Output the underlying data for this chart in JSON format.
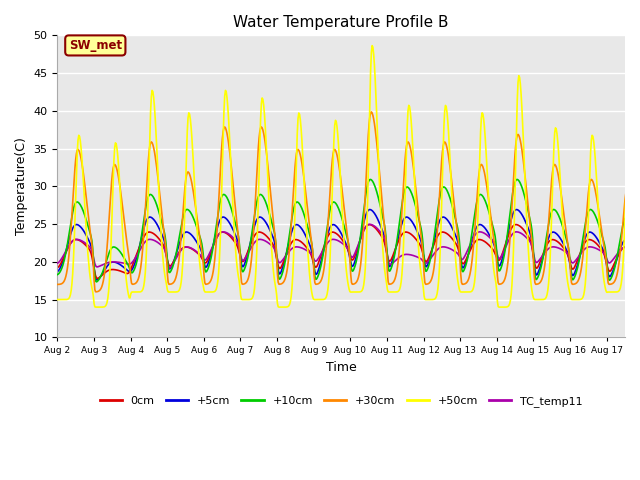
{
  "title": "Water Temperature Profile B",
  "xlabel": "Time",
  "ylabel": "Temperature(C)",
  "ylim": [
    10,
    50
  ],
  "background_color": "#e8e8e8",
  "grid_color": "white",
  "series": {
    "0cm": {
      "color": "#dd0000",
      "lw": 1.2
    },
    "+5cm": {
      "color": "#0000dd",
      "lw": 1.2
    },
    "+10cm": {
      "color": "#00cc00",
      "lw": 1.2
    },
    "+30cm": {
      "color": "#ff8800",
      "lw": 1.2
    },
    "+50cm": {
      "color": "#ffff00",
      "lw": 1.2
    },
    "TC_temp11": {
      "color": "#aa00aa",
      "lw": 1.2
    }
  },
  "legend_labels": [
    "0cm",
    "+5cm",
    "+10cm",
    "+30cm",
    "+50cm",
    "TC_temp11"
  ],
  "legend_colors": [
    "#dd0000",
    "#0000dd",
    "#00cc00",
    "#ff8800",
    "#ffff00",
    "#aa00aa"
  ],
  "sw_met_label": "SW_met",
  "sw_met_bg": "#ffff99",
  "sw_met_border": "#8b0000",
  "xtick_labels": [
    "Aug 2",
    "Aug 3",
    "Aug 4",
    "Aug 5",
    "Aug 6",
    "Aug 7",
    "Aug 8",
    "Aug 9",
    "Aug 10",
    "Aug 11",
    "Aug 12",
    "Aug 13",
    "Aug 14",
    "Aug 15",
    "Aug 16",
    "Aug 17"
  ],
  "n_days": 16,
  "pts_per_day": 48,
  "daily_peaks_50cm": [
    37,
    36,
    43,
    40,
    43,
    42,
    40,
    39,
    49,
    41,
    41,
    40,
    45,
    38,
    37,
    36
  ],
  "daily_peaks_30cm": [
    35,
    33,
    36,
    32,
    38,
    38,
    35,
    35,
    40,
    36,
    36,
    33,
    37,
    33,
    31,
    30
  ],
  "daily_peaks_10cm": [
    28,
    22,
    29,
    27,
    29,
    29,
    28,
    28,
    31,
    30,
    30,
    29,
    31,
    27,
    27,
    26
  ],
  "daily_peaks_5cm": [
    25,
    20,
    26,
    24,
    26,
    26,
    25,
    25,
    27,
    26,
    26,
    25,
    27,
    24,
    24,
    23
  ],
  "daily_peaks_0cm": [
    23,
    19,
    24,
    22,
    24,
    24,
    23,
    24,
    25,
    24,
    24,
    23,
    25,
    23,
    23,
    22
  ],
  "daily_peaks_tc": [
    23,
    20,
    23,
    22,
    24,
    23,
    22,
    23,
    25,
    21,
    22,
    24,
    24,
    22,
    22,
    22
  ],
  "daily_min_50cm": [
    15,
    14,
    16,
    16,
    16,
    15,
    14,
    15,
    16,
    16,
    15,
    16,
    14,
    15,
    15,
    16
  ],
  "daily_min_30cm": [
    17,
    16,
    17,
    17,
    17,
    17,
    17,
    17,
    17,
    17,
    17,
    17,
    17,
    17,
    17,
    17
  ],
  "daily_min_10cm": [
    18,
    17,
    18,
    18,
    18,
    18,
    17,
    17,
    18,
    18,
    18,
    18,
    18,
    17,
    17,
    17
  ],
  "daily_min_5cm": [
    18,
    17,
    18,
    18,
    18,
    18,
    17,
    17,
    18,
    18,
    18,
    18,
    18,
    17,
    17,
    17
  ],
  "daily_min_0cm": [
    18,
    17,
    18,
    18,
    18,
    18,
    17,
    17,
    18,
    18,
    18,
    18,
    18,
    17,
    17,
    17
  ],
  "daily_min_tc": [
    19,
    19,
    19,
    18,
    19,
    19,
    19,
    19,
    19,
    19,
    19,
    19,
    19,
    19,
    19,
    19
  ],
  "peak_hour_50cm": 0.58,
  "peak_hour_30cm": 0.55,
  "peak_hour_10cm": 0.52,
  "peak_hour_5cm": 0.5,
  "peak_hour_0cm": 0.48,
  "peak_hour_tc": 0.5,
  "sharpness_50cm": 8.0,
  "sharpness_30cm": 5.0,
  "sharpness_10cm": 3.5,
  "sharpness_5cm": 3.0,
  "sharpness_0cm": 2.5,
  "sharpness_tc": 2.5
}
